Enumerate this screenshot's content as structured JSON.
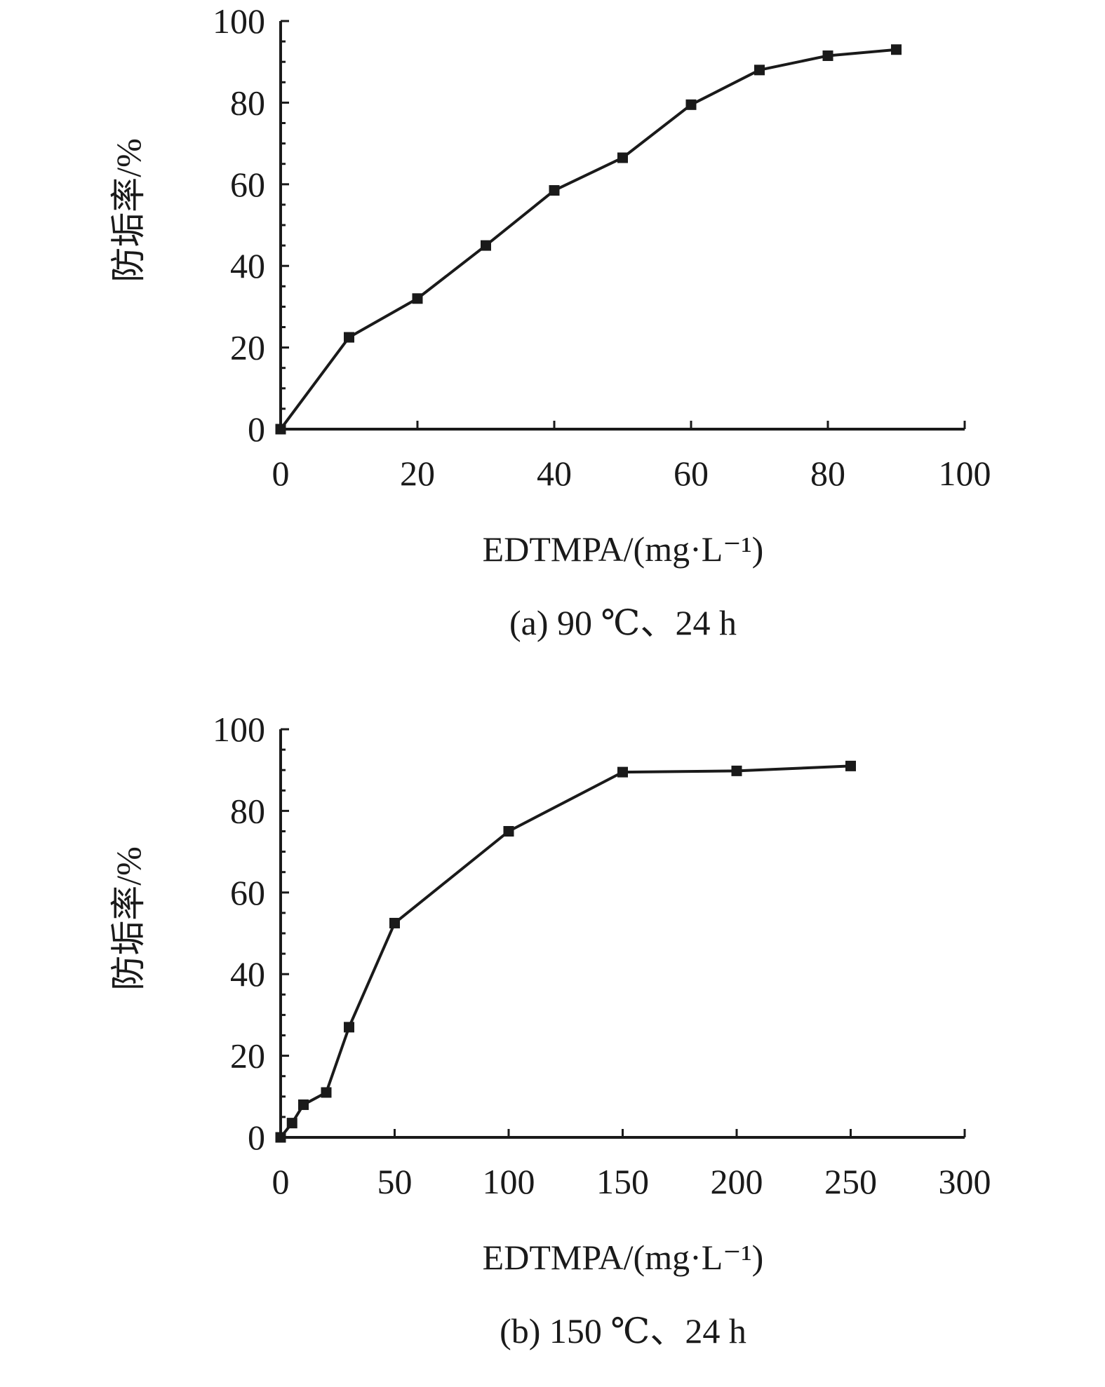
{
  "chart_data": [
    {
      "type": "line",
      "caption": "(a) 90 ℃、24 h",
      "xlabel": "EDTMPA/(mg·L⁻¹)",
      "ylabel": "防垢率/%",
      "xlim": [
        0,
        100
      ],
      "ylim": [
        0,
        100
      ],
      "xticks": [
        0,
        20,
        40,
        60,
        80,
        100
      ],
      "yticks": [
        0,
        20,
        40,
        60,
        80,
        100
      ],
      "x": [
        0,
        10,
        20,
        30,
        40,
        50,
        60,
        70,
        80,
        90
      ],
      "y": [
        0,
        22.5,
        32,
        45,
        58.5,
        66.5,
        79.5,
        88,
        91.5,
        93
      ],
      "marker": "square",
      "color": "#1a1a1a",
      "grid": false
    },
    {
      "type": "line",
      "caption": "(b) 150 ℃、24 h",
      "xlabel": "EDTMPA/(mg·L⁻¹)",
      "ylabel": "防垢率/%",
      "xlim": [
        0,
        300
      ],
      "ylim": [
        0,
        100
      ],
      "xticks": [
        0,
        50,
        100,
        150,
        200,
        250,
        300
      ],
      "yticks": [
        0,
        20,
        40,
        60,
        80,
        100
      ],
      "x": [
        0,
        5,
        10,
        20,
        30,
        50,
        100,
        150,
        200,
        250
      ],
      "y": [
        0,
        3.5,
        8,
        11,
        27,
        52.5,
        75,
        89.5,
        89.8,
        91
      ],
      "marker": "square",
      "color": "#1a1a1a",
      "grid": false
    }
  ]
}
